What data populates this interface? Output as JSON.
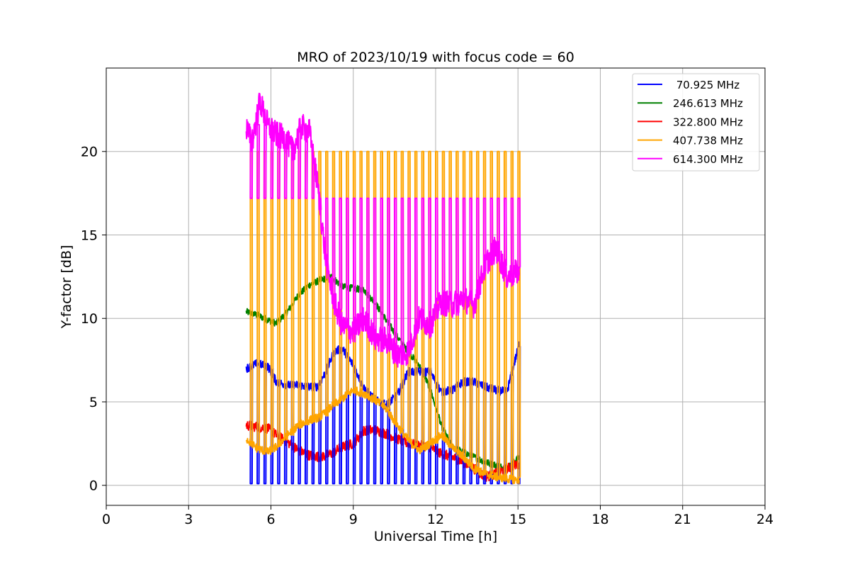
{
  "chart_data": {
    "type": "line",
    "title": "MRO of 2023/10/19 with focus code = 60",
    "xlabel": "Universal Time [h]",
    "ylabel": "Y-factor [dB]",
    "xlim": [
      0,
      24
    ],
    "ylim": [
      -1.2,
      25.0
    ],
    "xticks": [
      0,
      3,
      6,
      9,
      12,
      15,
      18,
      21,
      24
    ],
    "yticks": [
      0,
      5,
      10,
      15,
      20
    ],
    "grid": true,
    "legend_position": "upper right",
    "calibration_spikes": {
      "start_hour": 5.25,
      "end_hour": 15.05,
      "period_hours": 0.25
    },
    "series": [
      {
        "name": " 70.925 MHz",
        "color": "#0000ff",
        "spike_to": 0.1,
        "x": [
          5.1,
          5.5,
          5.9,
          6.2,
          6.6,
          7.0,
          7.4,
          7.7,
          8.0,
          8.3,
          8.6,
          9.0,
          9.4,
          9.8,
          10.2,
          10.6,
          11.0,
          11.4,
          11.8,
          12.2,
          12.6,
          13.0,
          13.4,
          13.8,
          14.2,
          14.6,
          15.05
        ],
        "y": [
          7.0,
          7.3,
          7.1,
          6.2,
          6.0,
          6.0,
          5.9,
          5.9,
          6.8,
          8.0,
          8.2,
          7.2,
          5.8,
          5.1,
          4.8,
          5.4,
          6.8,
          6.8,
          6.8,
          5.6,
          5.7,
          6.2,
          6.2,
          5.9,
          5.7,
          5.6,
          8.5
        ]
      },
      {
        "name": "246.613 MHz",
        "color": "#008000",
        "x": [
          5.1,
          5.5,
          5.9,
          6.2,
          6.6,
          7.0,
          7.4,
          7.8,
          8.2,
          8.6,
          9.0,
          9.4,
          9.8,
          10.2,
          10.6,
          11.0,
          11.4,
          11.8,
          12.2,
          12.6,
          13.0,
          13.4,
          13.8,
          14.2,
          14.6,
          15.05
        ],
        "y": [
          10.4,
          10.2,
          9.9,
          9.7,
          10.4,
          11.4,
          12.0,
          12.3,
          12.5,
          11.9,
          11.8,
          11.7,
          10.9,
          9.9,
          8.9,
          8.0,
          7.2,
          5.8,
          3.6,
          2.3,
          2.0,
          1.7,
          1.4,
          1.2,
          1.0,
          1.7
        ]
      },
      {
        "name": "322.800 MHz",
        "color": "#ff0000",
        "x": [
          5.1,
          5.5,
          5.9,
          6.2,
          6.6,
          7.0,
          7.4,
          7.8,
          8.2,
          8.6,
          9.0,
          9.4,
          9.8,
          10.2,
          10.6,
          11.0,
          11.4,
          11.8,
          12.2,
          12.6,
          13.0,
          13.4,
          13.8,
          14.2,
          14.6,
          15.05
        ],
        "y": [
          3.6,
          3.5,
          3.4,
          3.0,
          2.6,
          2.1,
          1.8,
          1.7,
          1.9,
          2.3,
          2.5,
          3.3,
          3.3,
          3.1,
          2.8,
          2.5,
          2.4,
          2.3,
          1.9,
          1.7,
          1.4,
          1.0,
          0.5,
          0.7,
          1.0,
          1.3
        ]
      },
      {
        "name": "407.738 MHz",
        "color": "#ffa500",
        "spike_to": 20.0,
        "x": [
          5.1,
          5.5,
          5.9,
          6.2,
          6.6,
          7.0,
          7.4,
          7.8,
          8.2,
          8.6,
          9.0,
          9.4,
          9.8,
          10.2,
          10.6,
          11.0,
          11.4,
          11.8,
          12.2,
          12.6,
          13.0,
          13.4,
          13.8,
          14.2,
          14.6,
          15.05
        ],
        "y": [
          2.8,
          2.2,
          2.0,
          2.3,
          3.0,
          3.6,
          3.9,
          4.1,
          4.7,
          5.2,
          5.7,
          5.5,
          5.1,
          4.6,
          3.6,
          2.7,
          2.1,
          2.5,
          3.0,
          2.3,
          1.7,
          1.0,
          0.7,
          0.5,
          0.4,
          0.3
        ]
      },
      {
        "name": "614.300 MHz",
        "color": "#ff00ff",
        "spike_to": 17.2,
        "x": [
          5.1,
          5.3,
          5.6,
          5.9,
          6.2,
          6.5,
          6.8,
          7.1,
          7.4,
          7.7,
          8.0,
          8.3,
          8.6,
          9.0,
          9.4,
          9.8,
          10.2,
          10.6,
          11.0,
          11.4,
          11.8,
          12.2,
          12.6,
          13.0,
          13.4,
          13.8,
          14.2,
          14.6,
          15.05
        ],
        "y": [
          21.5,
          20.5,
          23.0,
          21.5,
          21.0,
          20.8,
          20.0,
          21.5,
          21.2,
          18.0,
          13.5,
          11.0,
          9.5,
          9.2,
          10.0,
          8.8,
          8.7,
          7.8,
          8.0,
          10.0,
          9.6,
          11.0,
          10.8,
          11.2,
          10.8,
          13.2,
          14.2,
          12.5,
          12.8
        ]
      }
    ]
  }
}
